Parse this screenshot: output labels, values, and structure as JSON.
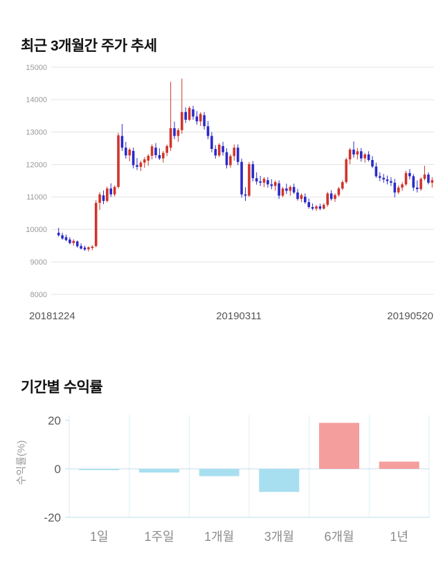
{
  "chart_data": [
    {
      "type": "candlestick",
      "title": "최근 3개월간 주가 추세",
      "ylim": [
        8000,
        15000
      ],
      "yticks": [
        8000,
        9000,
        10000,
        11000,
        12000,
        13000,
        14000,
        15000
      ],
      "x_labels": [
        "20181224",
        "20190311",
        "20190520"
      ],
      "up_color": "#d0342c",
      "down_color": "#2a2ac8",
      "grid_color": "#e3e3e3",
      "tick_label_color": "#999999",
      "candles": [
        [
          9900,
          10050,
          9780,
          9820
        ],
        [
          9820,
          9900,
          9680,
          9720
        ],
        [
          9760,
          9840,
          9640,
          9670
        ],
        [
          9690,
          9760,
          9540,
          9580
        ],
        [
          9580,
          9700,
          9500,
          9650
        ],
        [
          9630,
          9660,
          9440,
          9480
        ],
        [
          9490,
          9570,
          9380,
          9410
        ],
        [
          9440,
          9500,
          9340,
          9380
        ],
        [
          9390,
          9480,
          9320,
          9450
        ],
        [
          9430,
          9520,
          9360,
          9470
        ],
        [
          9490,
          10900,
          9450,
          10820
        ],
        [
          10820,
          11150,
          10600,
          11080
        ],
        [
          11050,
          11200,
          10780,
          10880
        ],
        [
          10880,
          11320,
          10830,
          11260
        ],
        [
          11260,
          11420,
          11000,
          11080
        ],
        [
          11080,
          11360,
          11020,
          11310
        ],
        [
          11310,
          12980,
          11260,
          12900
        ],
        [
          12880,
          13250,
          12420,
          12520
        ],
        [
          12520,
          12700,
          12180,
          12280
        ],
        [
          12280,
          12520,
          12100,
          12460
        ],
        [
          12420,
          12520,
          11880,
          11980
        ],
        [
          11980,
          12200,
          11830,
          11930
        ],
        [
          11930,
          12120,
          11800,
          12060
        ],
        [
          12060,
          12230,
          11900,
          12160
        ],
        [
          12120,
          12320,
          11960,
          12270
        ],
        [
          12270,
          12620,
          12160,
          12560
        ],
        [
          12520,
          12660,
          12200,
          12290
        ],
        [
          12290,
          12500,
          12140,
          12190
        ],
        [
          12190,
          12420,
          12060,
          12360
        ],
        [
          12360,
          12620,
          12260,
          12570
        ],
        [
          12520,
          14550,
          12420,
          13120
        ],
        [
          13120,
          13320,
          12780,
          12880
        ],
        [
          12880,
          13120,
          12700,
          13060
        ],
        [
          13060,
          14650,
          12950,
          13620
        ],
        [
          13620,
          13760,
          13280,
          13380
        ],
        [
          13380,
          13800,
          13340,
          13740
        ],
        [
          13700,
          13810,
          13380,
          13480
        ],
        [
          13480,
          13650,
          13230,
          13330
        ],
        [
          13330,
          13610,
          13190,
          13560
        ],
        [
          13520,
          13620,
          13080,
          13180
        ],
        [
          13180,
          13340,
          12780,
          12880
        ],
        [
          12880,
          13000,
          12380,
          12480
        ],
        [
          12480,
          12600,
          12180,
          12280
        ],
        [
          12280,
          12660,
          12230,
          12610
        ],
        [
          12570,
          12700,
          12280,
          12380
        ],
        [
          12380,
          12500,
          11880,
          11980
        ],
        [
          11980,
          12320,
          11900,
          12260
        ],
        [
          12260,
          12620,
          12120,
          12520
        ],
        [
          12520,
          12620,
          11980,
          12080
        ],
        [
          12080,
          12180,
          10980,
          11080
        ],
        [
          11080,
          11300,
          10880,
          11040
        ],
        [
          11040,
          12080,
          11000,
          12010
        ],
        [
          12010,
          12110,
          11480,
          11580
        ],
        [
          11580,
          11760,
          11380,
          11480
        ],
        [
          11480,
          11650,
          11340,
          11440
        ],
        [
          11440,
          11610,
          11300,
          11560
        ],
        [
          11520,
          11610,
          11290,
          11390
        ],
        [
          11390,
          11550,
          11240,
          11340
        ],
        [
          11340,
          11510,
          11190,
          11460
        ],
        [
          11420,
          11510,
          10940,
          11040
        ],
        [
          11040,
          11310,
          10990,
          11260
        ],
        [
          11260,
          11410,
          11090,
          11190
        ],
        [
          11190,
          11360,
          11040,
          11310
        ],
        [
          11310,
          11410,
          11090,
          11140
        ],
        [
          11140,
          11250,
          10890,
          10940
        ],
        [
          10940,
          11110,
          10840,
          11060
        ],
        [
          11010,
          11110,
          10790,
          10840
        ],
        [
          10840,
          10950,
          10640,
          10690
        ],
        [
          10690,
          10800,
          10590,
          10640
        ],
        [
          10640,
          10760,
          10570,
          10710
        ],
        [
          10710,
          10790,
          10590,
          10640
        ],
        [
          10640,
          10810,
          10610,
          10760
        ],
        [
          10760,
          11160,
          10700,
          11110
        ],
        [
          11110,
          11210,
          10890,
          10940
        ],
        [
          10940,
          11110,
          10850,
          11060
        ],
        [
          11060,
          11310,
          11010,
          11260
        ],
        [
          11260,
          11510,
          11210,
          11460
        ],
        [
          11460,
          12210,
          11410,
          12160
        ],
        [
          12160,
          12510,
          12010,
          12460
        ],
        [
          12460,
          12710,
          12210,
          12310
        ],
        [
          12310,
          12510,
          12160,
          12410
        ],
        [
          12410,
          12510,
          12090,
          12190
        ],
        [
          12190,
          12360,
          12060,
          12310
        ],
        [
          12310,
          12410,
          12090,
          12140
        ],
        [
          12140,
          12260,
          11890,
          11940
        ],
        [
          11940,
          12060,
          11590,
          11640
        ],
        [
          11640,
          11760,
          11490,
          11590
        ],
        [
          11590,
          11710,
          11440,
          11540
        ],
        [
          11540,
          11660,
          11390,
          11490
        ],
        [
          11490,
          11610,
          11340,
          11440
        ],
        [
          11440,
          11560,
          10990,
          11140
        ],
        [
          11140,
          11360,
          11090,
          11290
        ],
        [
          11290,
          11460,
          11190,
          11390
        ],
        [
          11390,
          11810,
          11340,
          11740
        ],
        [
          11740,
          11860,
          11540,
          11640
        ],
        [
          11640,
          11710,
          11190,
          11290
        ],
        [
          11290,
          11510,
          11140,
          11240
        ],
        [
          11240,
          11610,
          11190,
          11560
        ],
        [
          11560,
          11960,
          11510,
          11690
        ],
        [
          11690,
          11760,
          11390,
          11440
        ],
        [
          11440,
          11610,
          11290,
          11520
        ]
      ]
    },
    {
      "type": "bar",
      "title": "기간별 수익률",
      "ylabel": "수익률(%)",
      "categories": [
        "1일",
        "1주일",
        "1개월",
        "3개월",
        "6개월",
        "1년"
      ],
      "values": [
        -0.5,
        -1.5,
        -3,
        -9.5,
        19,
        3
      ],
      "yticks": [
        20,
        0,
        -20
      ],
      "ylim": [
        -20,
        20
      ],
      "pos_color": "#f59e9e",
      "neg_color": "#a8dff0",
      "line_color": "#c3dcea",
      "separator_color": "#ddeef7",
      "tick_label_color": "#5a5a5a"
    }
  ]
}
